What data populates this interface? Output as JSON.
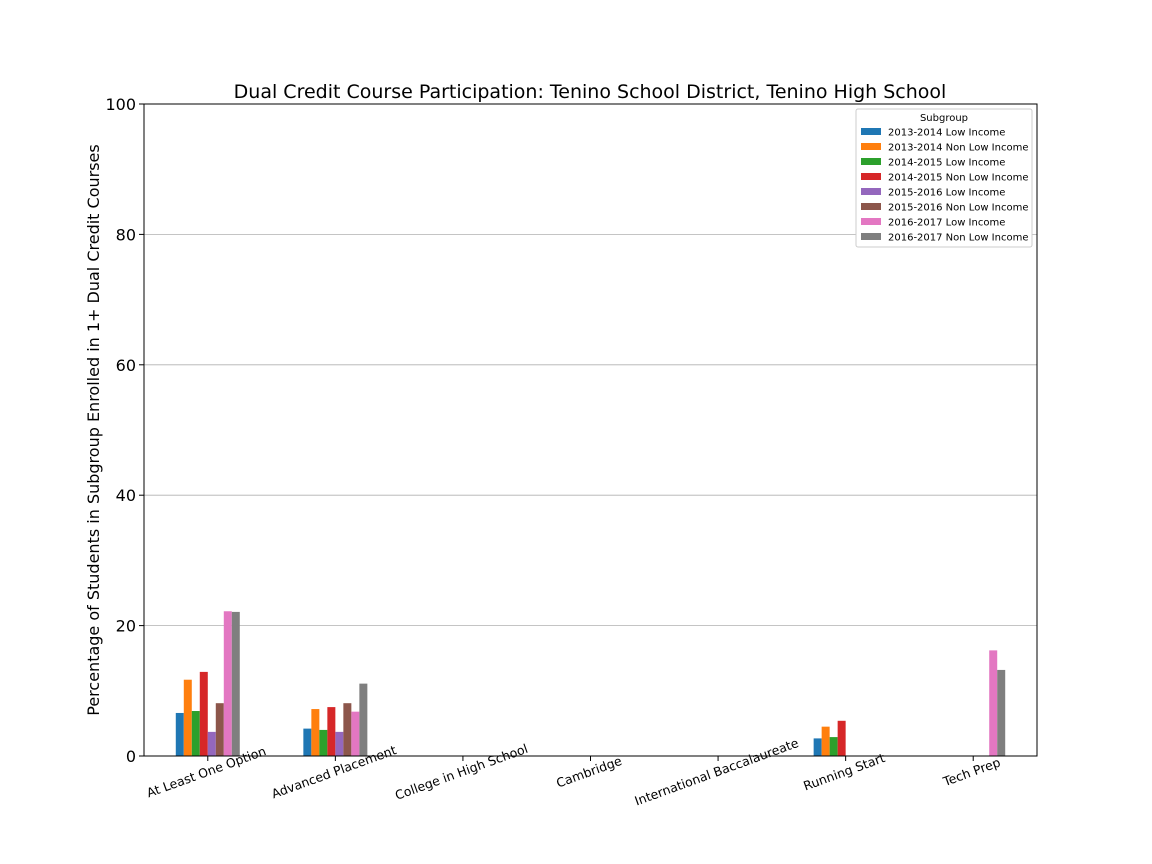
{
  "chart_data": {
    "type": "bar",
    "title": "Dual Credit Course Participation: Tenino School District, Tenino High School",
    "xlabel": "",
    "ylabel": "Percentage of Students in Subgroup Enrolled in 1+ Dual Credit Courses",
    "ylim": [
      0,
      100
    ],
    "yticks": [
      0,
      20,
      40,
      60,
      80,
      100
    ],
    "grid": "horizontal",
    "legend_title": "Subgroup",
    "legend_position": "top-right",
    "categories": [
      "At Least One Option",
      "Advanced Placement",
      "College in High School",
      "Cambridge",
      "International Baccalaureate",
      "Running Start",
      "Tech Prep"
    ],
    "series": [
      {
        "name": "2013-2014 Low Income",
        "color": "#1f77b4",
        "values": [
          6.6,
          4.2,
          0,
          0,
          0,
          2.7,
          0
        ]
      },
      {
        "name": "2013-2014 Non Low Income",
        "color": "#ff7f0e",
        "values": [
          11.7,
          7.2,
          0,
          0,
          0,
          4.5,
          0
        ]
      },
      {
        "name": "2014-2015 Low Income",
        "color": "#2ca02c",
        "values": [
          6.9,
          4.0,
          0,
          0,
          0,
          2.9,
          0
        ]
      },
      {
        "name": "2014-2015 Non Low Income",
        "color": "#d62728",
        "values": [
          12.9,
          7.5,
          0,
          0,
          0,
          5.4,
          0
        ]
      },
      {
        "name": "2015-2016 Low Income",
        "color": "#9467bd",
        "values": [
          3.7,
          3.7,
          0,
          0,
          0,
          0,
          0
        ]
      },
      {
        "name": "2015-2016 Non Low Income",
        "color": "#8c564b",
        "values": [
          8.1,
          8.1,
          0,
          0,
          0,
          0,
          0
        ]
      },
      {
        "name": "2016-2017 Low Income",
        "color": "#e377c2",
        "values": [
          22.2,
          6.8,
          0,
          0,
          0,
          0,
          16.2
        ]
      },
      {
        "name": "2016-2017 Non Low Income",
        "color": "#7f7f7f",
        "values": [
          22.1,
          11.1,
          0,
          0,
          0,
          0,
          13.2
        ]
      }
    ]
  }
}
